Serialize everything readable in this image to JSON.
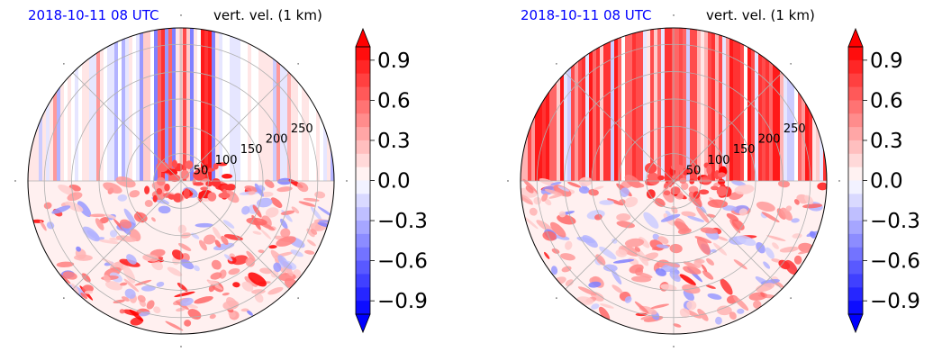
{
  "chart_data": [
    {
      "type": "heatmap",
      "projection": "polar",
      "title_left": "2018-10-11 08 UTC",
      "title_right": "vert. vel. (1 km)",
      "radial_ticks": [
        "50",
        "100",
        "150",
        "200",
        "250"
      ],
      "radial_values": [
        50,
        100,
        150,
        200,
        250
      ],
      "r_max": 280,
      "grid": true,
      "colormap": "bwr",
      "colorbar": {
        "min": -1.0,
        "max": 1.0,
        "extend": "both",
        "ticks": [
          "0.9",
          "0.6",
          "0.3",
          "0.0",
          "−0.3",
          "−0.6",
          "−0.9"
        ],
        "tick_values": [
          0.9,
          0.6,
          0.3,
          0.0,
          -0.3,
          -0.6,
          -0.9
        ]
      },
      "features": {
        "streak_band_deg": [
          70,
          115
        ],
        "streak_strength": "moderate",
        "lower_half": "noisy positive/negative updraft patterns"
      }
    },
    {
      "type": "heatmap",
      "projection": "polar",
      "title_left": "2018-10-11 08 UTC",
      "title_right": "vert. vel. (1 km)",
      "radial_ticks": [
        "50",
        "100",
        "150",
        "200",
        "250"
      ],
      "radial_values": [
        50,
        100,
        150,
        200,
        250
      ],
      "r_max": 280,
      "grid": true,
      "colormap": "bwr",
      "colorbar": {
        "min": -1.0,
        "max": 1.0,
        "extend": "both",
        "ticks": [
          "0.9",
          "0.6",
          "0.3",
          "0.0",
          "−0.3",
          "−0.6",
          "−0.9"
        ],
        "tick_values": [
          0.9,
          0.6,
          0.3,
          0.0,
          -0.3,
          -0.6,
          -0.9
        ]
      },
      "features": {
        "streak_band_deg": [
          30,
          150
        ],
        "streak_strength": "strong",
        "lower_half": "noisy positive/negative updraft patterns"
      }
    }
  ]
}
